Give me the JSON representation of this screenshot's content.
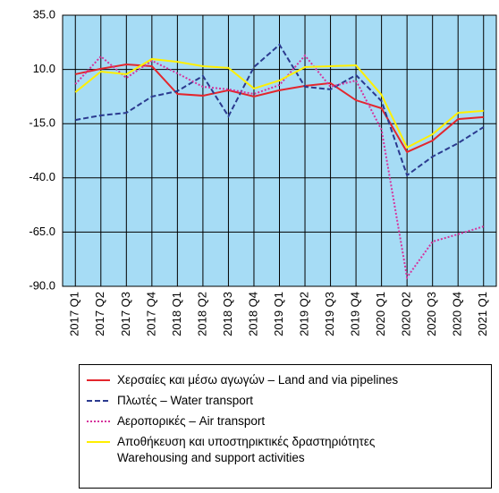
{
  "chart_data": {
    "type": "line",
    "categories": [
      "2017 Q1",
      "2017 Q2",
      "2017 Q3",
      "2017 Q4",
      "2018 Q1",
      "2018 Q2",
      "2018 Q3",
      "2018 Q4",
      "2019 Q1",
      "2019 Q2",
      "2019 Q3",
      "2019 Q4",
      "2020 Q1",
      "2020 Q2",
      "2020 Q3",
      "2020 Q4",
      "2021 Q1"
    ],
    "series": [
      {
        "name": "Χερσαίες και μέσω αγωγών – Land and via pipelines",
        "color": "#e3262d",
        "dash": "solid",
        "values": [
          7.8,
          10.3,
          12.3,
          11.5,
          -1.3,
          -2.1,
          0.4,
          -2.5,
          0.4,
          2.4,
          3.7,
          -4.2,
          -7.9,
          -28.1,
          -22.8,
          -12.9,
          -12.0
        ]
      },
      {
        "name": "Πλωτές – Water transport",
        "color": "#2b3a8f",
        "dash": "dashed",
        "values": [
          -13.3,
          -11.2,
          -10.0,
          -2.5,
          0.0,
          7.0,
          -11.6,
          11.1,
          21.4,
          2.0,
          0.8,
          7.4,
          -4.6,
          -38.8,
          -30.2,
          -24.0,
          -16.6
        ]
      },
      {
        "name": "Αεροπορικές – Air transport",
        "color": "#d6339c",
        "dash": "dotted",
        "values": [
          3.2,
          16.0,
          6.1,
          14.0,
          8.2,
          2.0,
          0.8,
          -1.3,
          2.8,
          16.4,
          2.0,
          4.9,
          -17.8,
          -85.9,
          -69.4,
          -66.0,
          -62.4
        ]
      },
      {
        "name": "Αποθήκευση και υποστηρικτικές δραστηριότητες\nWarehousing and support activities",
        "color": "#ffef00",
        "dash": "solid",
        "values": [
          -0.5,
          9.0,
          7.8,
          14.8,
          13.5,
          11.5,
          10.7,
          1.2,
          4.9,
          11.1,
          11.5,
          11.9,
          -1.7,
          -26.0,
          -19.9,
          -10.0,
          -9.1
        ]
      }
    ],
    "ylim": [
      -90,
      35
    ],
    "yticks": [
      {
        "value": 35,
        "label": "35.0"
      },
      {
        "value": 10,
        "label": "10.0"
      },
      {
        "value": -15,
        "label": "-15.0"
      },
      {
        "value": -40,
        "label": "-40.0"
      },
      {
        "value": -65,
        "label": "-65.0"
      },
      {
        "value": -90,
        "label": "-90.0"
      }
    ],
    "grid": true,
    "background": "#a6dcf5",
    "legend": "bottom"
  }
}
